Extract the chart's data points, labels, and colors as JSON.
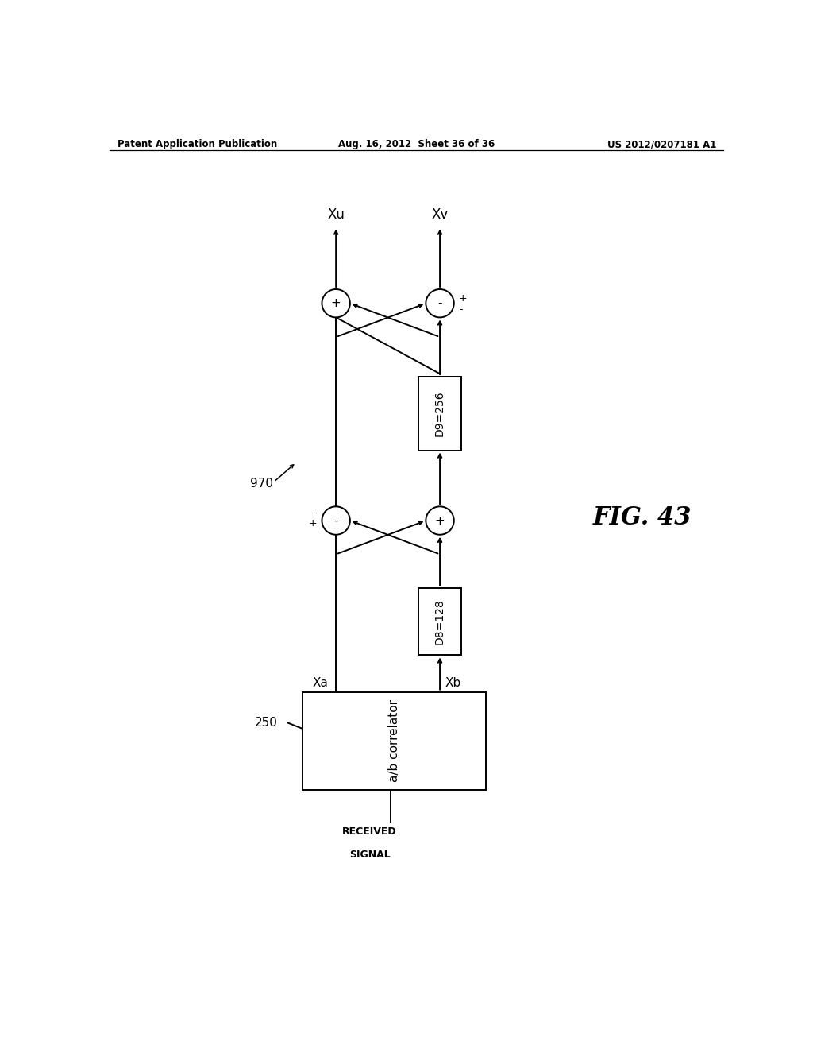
{
  "header_left": "Patent Application Publication",
  "header_center": "Aug. 16, 2012  Sheet 36 of 36",
  "header_right": "US 2012/0207181 A1",
  "fig_label": "FIG. 43",
  "label_970": "970",
  "label_250": "250",
  "box_correlator_text": "a/b correlator",
  "received_signal_line1": "RECEIVED",
  "received_signal_line2": "SIGNAL",
  "label_xa": "Xa",
  "label_xb": "Xb",
  "label_xu": "Xu",
  "label_xv": "Xv",
  "box_d8_text": "D8=128",
  "box_d9_text": "D9=256",
  "c1_left_sign": "-",
  "c1_right_sign": "+",
  "c2_left_sign": "+",
  "c2_right_sign": "-",
  "c1_left_plus": "+",
  "c1_left_minus": "-",
  "c2_right_plus": "+",
  "c2_right_minus": "-",
  "bg_color": "#ffffff",
  "line_color": "#000000"
}
